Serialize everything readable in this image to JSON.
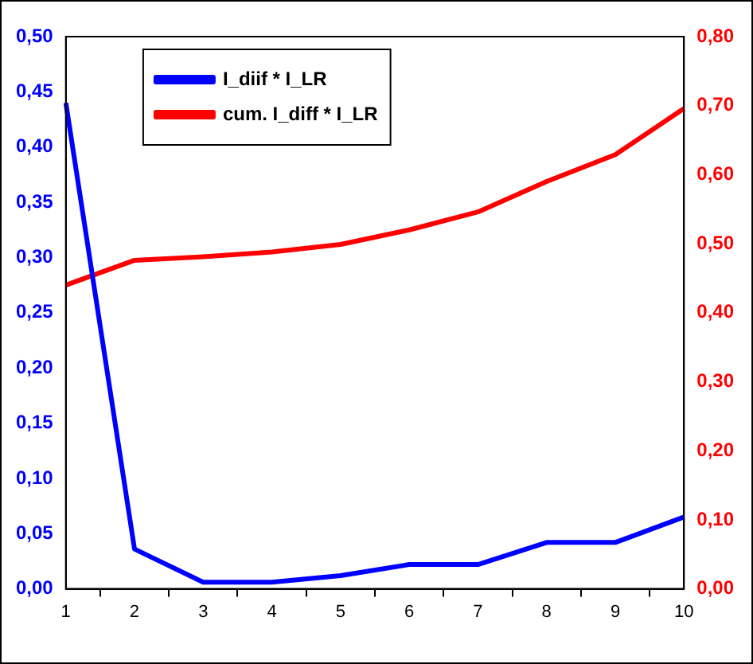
{
  "chart_data": {
    "type": "line",
    "categories": [
      "1",
      "2",
      "3",
      "4",
      "5",
      "6",
      "7",
      "8",
      "9",
      "10"
    ],
    "series": [
      {
        "name": "I_diif * I_LR",
        "color": "#0000ff",
        "values": [
          0.44,
          0.036,
          0.006,
          0.006,
          0.012,
          0.022,
          0.022,
          0.042,
          0.042,
          0.065
        ]
      },
      {
        "name": "cum. I_diff * I_LR",
        "color": "#ff0000",
        "axis": "y2",
        "values": [
          0.44,
          0.476,
          0.481,
          0.488,
          0.499,
          0.52,
          0.546,
          0.59,
          0.629,
          0.696
        ]
      }
    ],
    "ylim": [
      0,
      0.5
    ],
    "yticks": [
      {
        "value": 0,
        "label": "0,00"
      },
      {
        "value": 0.05,
        "label": "0,05"
      },
      {
        "value": 0.1,
        "label": "0,10"
      },
      {
        "value": 0.15,
        "label": "0,15"
      },
      {
        "value": 0.2,
        "label": "0,20"
      },
      {
        "value": 0.25,
        "label": "0,25"
      },
      {
        "value": 0.3,
        "label": "0,30"
      },
      {
        "value": 0.35,
        "label": "0,35"
      },
      {
        "value": 0.4,
        "label": "0,40"
      },
      {
        "value": 0.45,
        "label": "0,45"
      },
      {
        "value": 0.5,
        "label": "0,50"
      }
    ],
    "y2lim": [
      0,
      0.8
    ],
    "y2ticks": [
      {
        "value": 0,
        "label": "0,00"
      },
      {
        "value": 0.1,
        "label": "0,10"
      },
      {
        "value": 0.2,
        "label": "0,20"
      },
      {
        "value": 0.3,
        "label": "0,30"
      },
      {
        "value": 0.4,
        "label": "0,40"
      },
      {
        "value": 0.5,
        "label": "0,50"
      },
      {
        "value": 0.6,
        "label": "0,60"
      },
      {
        "value": 0.7,
        "label": "0,70"
      },
      {
        "value": 0.8,
        "label": "0,80"
      }
    ],
    "grid": false,
    "legend": "top",
    "marker": "none",
    "line_style": "solid"
  }
}
